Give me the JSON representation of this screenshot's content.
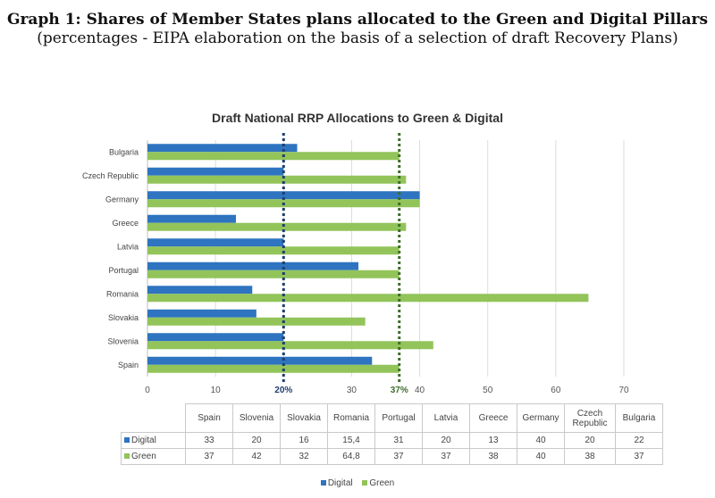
{
  "caption": {
    "bold": "Graph 1: Shares of Member States plans allocated to the Green and Digital Pillars",
    "normal": " (percentages - EIPA elaboration on the basis of a selection of draft Recovery Plans)"
  },
  "colors": {
    "digital": "#2e74c0",
    "green": "#92c45a",
    "digital_line": "#1f3e6e",
    "green_line": "#3c6e2a"
  },
  "chart_data": {
    "type": "bar",
    "orientation": "horizontal",
    "title": "Draft National RRP Allocations to Green & Digital",
    "categories": [
      "Bulgaria",
      "Czech Republic",
      "Germany",
      "Greece",
      "Latvia",
      "Portugal",
      "Romania",
      "Slovakia",
      "Slovenia",
      "Spain"
    ],
    "series": [
      {
        "name": "Digital",
        "values": [
          22,
          20,
          40,
          13,
          20,
          31,
          15.4,
          16,
          20,
          33
        ]
      },
      {
        "name": "Green",
        "values": [
          37,
          38,
          40,
          38,
          37,
          37,
          64.8,
          32,
          42,
          37
        ]
      }
    ],
    "xlim": [
      0,
      70
    ],
    "xticks": [
      "0",
      "10",
      "20%",
      "30",
      "37%",
      "40",
      "50",
      "60",
      "70"
    ],
    "xtick_values": [
      0,
      10,
      20,
      30,
      37,
      40,
      50,
      60,
      70
    ],
    "reference_lines": [
      {
        "value": 20,
        "series": "Digital"
      },
      {
        "value": 37,
        "series": "Green"
      }
    ],
    "legend_position": "bottom",
    "grid": true
  },
  "table": {
    "columns": [
      "Spain",
      "Slovenia",
      "Slovakia",
      "Romania",
      "Portugal",
      "Latvia",
      "Greece",
      "Germany",
      "Czech Republic",
      "Bulgaria"
    ],
    "rows": [
      {
        "label": "Digital",
        "values": [
          "33",
          "20",
          "16",
          "15,4",
          "31",
          "20",
          "13",
          "40",
          "20",
          "22"
        ]
      },
      {
        "label": "Green",
        "values": [
          "37",
          "42",
          "32",
          "64,8",
          "37",
          "37",
          "38",
          "40",
          "38",
          "37"
        ]
      }
    ]
  },
  "legend": {
    "digital": "Digital",
    "green": "Green"
  }
}
